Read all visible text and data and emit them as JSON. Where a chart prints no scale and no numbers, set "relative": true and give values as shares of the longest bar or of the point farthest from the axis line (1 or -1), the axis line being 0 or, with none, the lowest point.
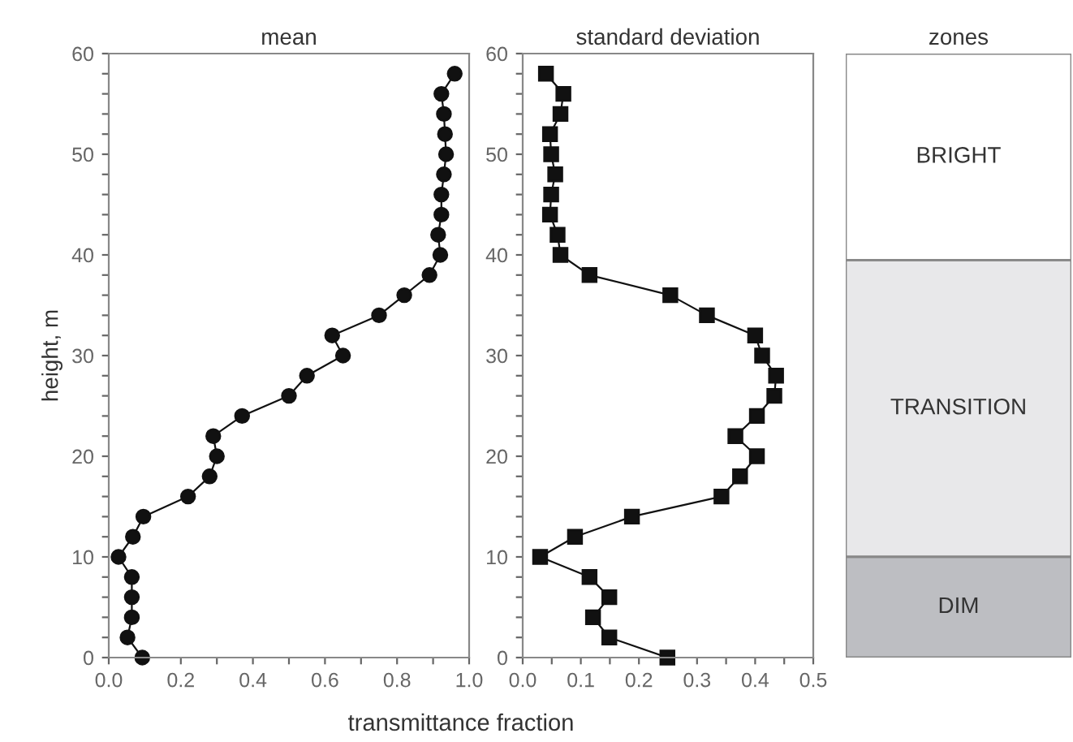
{
  "chart_data": [
    {
      "type": "line",
      "title": "mean",
      "xlabel": "transmittance fraction",
      "ylabel": "height, m",
      "orientation": "horizontal",
      "marker": "circle",
      "line_style": "solid",
      "grid": false,
      "legend": false,
      "xlim": [
        0,
        1
      ],
      "xticks": [
        {
          "value": 0,
          "label": "0.0"
        },
        {
          "value": 0.1,
          "label": null
        },
        {
          "value": 0.2,
          "label": "0.2"
        },
        {
          "value": 0.3,
          "label": null
        },
        {
          "value": 0.4,
          "label": "0.4"
        },
        {
          "value": 0.5,
          "label": null
        },
        {
          "value": 0.6,
          "label": "0.6"
        },
        {
          "value": 0.7,
          "label": null
        },
        {
          "value": 0.8,
          "label": "0.8"
        },
        {
          "value": 0.9,
          "label": null
        },
        {
          "value": 1,
          "label": "1.0"
        }
      ],
      "ylim": [
        0,
        60
      ],
      "yticks": [
        0,
        {
          "value": 2,
          "label": null
        },
        {
          "value": 4,
          "label": null
        },
        {
          "value": 6,
          "label": null
        },
        {
          "value": 8,
          "label": null
        },
        10,
        {
          "value": 12,
          "label": null
        },
        {
          "value": 14,
          "label": null
        },
        {
          "value": 16,
          "label": null
        },
        {
          "value": 18,
          "label": null
        },
        20,
        {
          "value": 22,
          "label": null
        },
        {
          "value": 24,
          "label": null
        },
        {
          "value": 26,
          "label": null
        },
        {
          "value": 28,
          "label": null
        },
        30,
        {
          "value": 32,
          "label": null
        },
        {
          "value": 34,
          "label": null
        },
        {
          "value": 36,
          "label": null
        },
        {
          "value": 38,
          "label": null
        },
        40,
        {
          "value": 42,
          "label": null
        },
        {
          "value": 44,
          "label": null
        },
        {
          "value": 46,
          "label": null
        },
        {
          "value": 48,
          "label": null
        },
        50,
        {
          "value": 52,
          "label": null
        },
        {
          "value": 54,
          "label": null
        },
        {
          "value": 56,
          "label": null
        },
        {
          "value": 58,
          "label": null
        },
        60
      ],
      "x": [
        0,
        2,
        4,
        6,
        8,
        10,
        12,
        14,
        16,
        18,
        20,
        22,
        24,
        26,
        28,
        30,
        32,
        34,
        36,
        38,
        40,
        42,
        44,
        46,
        48,
        50,
        52,
        54,
        56,
        58
      ],
      "series": [
        {
          "color": "#111111",
          "values": [
            0.093,
            0.052,
            0.064,
            0.064,
            0.064,
            0.027,
            0.067,
            0.096,
            0.22,
            0.28,
            0.3,
            0.29,
            0.37,
            0.5,
            0.55,
            0.65,
            0.62,
            0.75,
            0.82,
            0.89,
            0.92,
            0.914,
            0.923,
            0.923,
            0.93,
            0.936,
            0.933,
            0.93,
            0.923,
            0.96
          ]
        }
      ]
    },
    {
      "type": "line",
      "title": "standard deviation",
      "orientation": "horizontal",
      "marker": "square",
      "line_style": "solid",
      "grid": false,
      "legend": false,
      "xlim": [
        0,
        0.5
      ],
      "xticks": [
        {
          "value": 0,
          "label": "0.0"
        },
        {
          "value": 0.05,
          "label": null
        },
        {
          "value": 0.1,
          "label": "0.1"
        },
        {
          "value": 0.15,
          "label": null
        },
        {
          "value": 0.2,
          "label": "0.2"
        },
        {
          "value": 0.25,
          "label": null
        },
        {
          "value": 0.3,
          "label": "0.3"
        },
        {
          "value": 0.35,
          "label": null
        },
        {
          "value": 0.4,
          "label": "0.4"
        },
        {
          "value": 0.45,
          "label": null
        },
        {
          "value": 0.5,
          "label": "0.5"
        }
      ],
      "ylim": [
        0,
        60
      ],
      "yticks": [
        0,
        {
          "value": 2,
          "label": null
        },
        {
          "value": 4,
          "label": null
        },
        {
          "value": 6,
          "label": null
        },
        {
          "value": 8,
          "label": null
        },
        10,
        {
          "value": 12,
          "label": null
        },
        {
          "value": 14,
          "label": null
        },
        {
          "value": 16,
          "label": null
        },
        {
          "value": 18,
          "label": null
        },
        20,
        {
          "value": 22,
          "label": null
        },
        {
          "value": 24,
          "label": null
        },
        {
          "value": 26,
          "label": null
        },
        {
          "value": 28,
          "label": null
        },
        30,
        {
          "value": 32,
          "label": null
        },
        {
          "value": 34,
          "label": null
        },
        {
          "value": 36,
          "label": null
        },
        {
          "value": 38,
          "label": null
        },
        40,
        {
          "value": 42,
          "label": null
        },
        {
          "value": 44,
          "label": null
        },
        {
          "value": 46,
          "label": null
        },
        {
          "value": 48,
          "label": null
        },
        50,
        {
          "value": 52,
          "label": null
        },
        {
          "value": 54,
          "label": null
        },
        {
          "value": 56,
          "label": null
        },
        {
          "value": 58,
          "label": null
        },
        60
      ],
      "x": [
        0,
        2,
        4,
        6,
        8,
        10,
        12,
        14,
        16,
        18,
        20,
        22,
        24,
        26,
        28,
        30,
        32,
        34,
        36,
        38,
        40,
        42,
        44,
        46,
        48,
        50,
        52,
        54,
        56,
        58
      ],
      "series": [
        {
          "color": "#111111",
          "values": [
            0.249,
            0.149,
            0.121,
            0.149,
            0.115,
            0.03,
            0.09,
            0.188,
            0.342,
            0.374,
            0.403,
            0.366,
            0.403,
            0.433,
            0.436,
            0.412,
            0.4,
            0.317,
            0.254,
            0.115,
            0.065,
            0.06,
            0.047,
            0.049,
            0.056,
            0.049,
            0.047,
            0.065,
            0.07,
            0.04
          ]
        }
      ]
    },
    {
      "type": "bar",
      "title": "zones",
      "stacked": true,
      "relative": true,
      "categories": [
        null
      ],
      "series": [
        {
          "name": "DIM",
          "color": "#bdbec2",
          "values": [
            0.167
          ]
        },
        {
          "name": "TRANSITION",
          "color": "#e8e8ea",
          "values": [
            0.491
          ]
        },
        {
          "name": "BRIGHT",
          "color": "#ffffff",
          "values": [
            0.342
          ]
        }
      ]
    }
  ]
}
